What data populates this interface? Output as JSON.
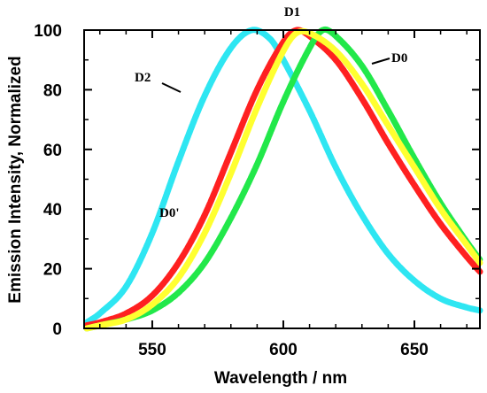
{
  "chart_data": {
    "type": "line",
    "xlabel": "Wavelength / nm",
    "ylabel": "Emission Intensity, Normalized",
    "xlim": [
      524,
      675
    ],
    "ylim": [
      0,
      100
    ],
    "xticks": [
      550,
      600,
      650
    ],
    "yticks": [
      0,
      20,
      40,
      60,
      80,
      100
    ],
    "grid": false,
    "series": [
      {
        "name": "D0'",
        "color": "#ff2020",
        "x": [
          525,
          530,
          540,
          550,
          560,
          570,
          580,
          590,
          600,
          605,
          610,
          620,
          630,
          640,
          650,
          660,
          670,
          675
        ],
        "y": [
          1,
          2,
          5,
          11,
          22,
          38,
          59,
          80,
          96,
          100,
          98,
          90,
          77,
          62,
          48,
          35,
          24,
          19
        ]
      },
      {
        "name": "D1",
        "color": "#ffff30",
        "x": [
          525,
          530,
          540,
          550,
          560,
          570,
          580,
          590,
          600,
          605,
          610,
          620,
          630,
          640,
          650,
          660,
          670,
          675
        ],
        "y": [
          0,
          1,
          3,
          8,
          17,
          32,
          52,
          74,
          93,
          99,
          99,
          93,
          82,
          68,
          54,
          40,
          28,
          22
        ]
      },
      {
        "name": "D0",
        "color": "#22e84a",
        "x": [
          525,
          530,
          540,
          550,
          560,
          570,
          580,
          590,
          600,
          610,
          615,
          620,
          630,
          640,
          650,
          660,
          670,
          675
        ],
        "y": [
          0,
          1,
          3,
          6,
          12,
          22,
          37,
          55,
          76,
          94,
          100,
          98,
          88,
          73,
          57,
          42,
          29,
          23
        ]
      },
      {
        "name": "D2",
        "color": "#2ee6f2",
        "x": [
          525,
          530,
          540,
          550,
          560,
          570,
          580,
          588,
          595,
          600,
          610,
          620,
          630,
          640,
          650,
          660,
          670,
          675
        ],
        "y": [
          2,
          5,
          14,
          32,
          56,
          78,
          94,
          100,
          97,
          90,
          73,
          54,
          38,
          25,
          16,
          10,
          7,
          6
        ]
      }
    ]
  }
}
